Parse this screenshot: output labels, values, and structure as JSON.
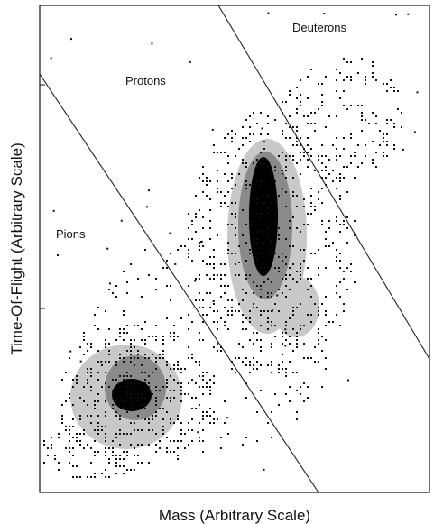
{
  "chart_data": {
    "type": "scatter",
    "title": "",
    "xlabel": "Mass (Arbitrary Scale)",
    "ylabel": "Time-Of-Flight (Arbitrary Scale)",
    "grid": false,
    "legend": "none",
    "region_labels": [
      "Protons",
      "Deuterons",
      "Pions"
    ],
    "colors": {
      "dots": "#111111",
      "light": "#c8c8c8",
      "medium": "#8a8a8a",
      "dark": "#000000",
      "lines": "#222222"
    }
  }
}
